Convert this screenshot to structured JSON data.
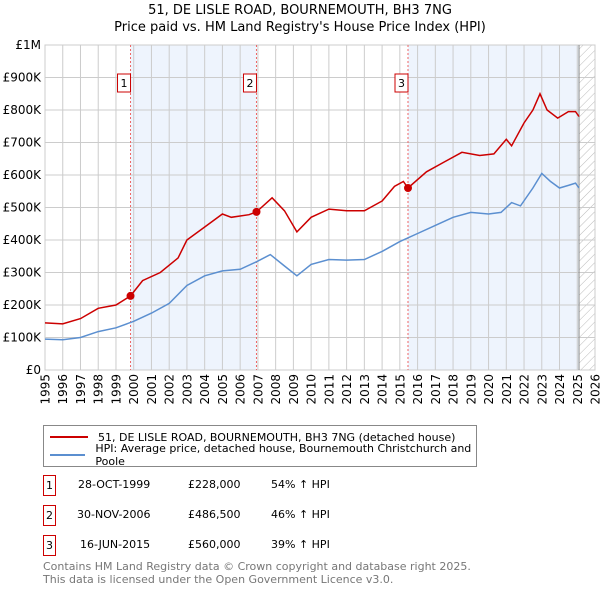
{
  "chart_data": {
    "type": "line",
    "title": "51, DE LISLE ROAD, BOURNEMOUTH, BH3 7NG",
    "subtitle": "Price paid vs. HM Land Registry's House Price Index (HPI)",
    "xlim": [
      1995,
      2026
    ],
    "ylim": [
      0,
      1000000
    ],
    "x_ticks": [
      "1995",
      "1996",
      "1997",
      "1998",
      "1999",
      "2000",
      "2001",
      "2002",
      "2003",
      "2004",
      "2005",
      "2006",
      "2007",
      "2008",
      "2009",
      "2010",
      "2011",
      "2012",
      "2013",
      "2014",
      "2015",
      "2016",
      "2017",
      "2018",
      "2019",
      "2020",
      "2021",
      "2022",
      "2023",
      "2024",
      "2025",
      "2026"
    ],
    "y_ticks": [
      {
        "v": 0,
        "label": "£0"
      },
      {
        "v": 100000,
        "label": "£100K"
      },
      {
        "v": 200000,
        "label": "£200K"
      },
      {
        "v": 300000,
        "label": "£300K"
      },
      {
        "v": 400000,
        "label": "£400K"
      },
      {
        "v": 500000,
        "label": "£500K"
      },
      {
        "v": 600000,
        "label": "£600K"
      },
      {
        "v": 700000,
        "label": "£700K"
      },
      {
        "v": 800000,
        "label": "£800K"
      },
      {
        "v": 900000,
        "label": "£900K"
      },
      {
        "v": 1000000,
        "label": "£1M"
      }
    ],
    "grid": true,
    "data_end": 2025.1,
    "series": [
      {
        "name": "51, DE LISLE ROAD, BOURNEMOUTH, BH3 7NG (detached house)",
        "color": "#cc0000",
        "x": [
          1995,
          1996,
          1997,
          1998,
          1999,
          1999.82,
          2000.5,
          2001.5,
          2002.5,
          2003,
          2004,
          2005,
          2005.5,
          2006.5,
          2006.92,
          2007.8,
          2008.5,
          2009.2,
          2010,
          2011,
          2012,
          2013,
          2014,
          2014.7,
          2015.2,
          2015.46,
          2016.5,
          2017.5,
          2018.5,
          2019.5,
          2020.3,
          2021,
          2021.3,
          2022,
          2022.5,
          2022.9,
          2023.3,
          2023.9,
          2024.5,
          2024.9,
          2025.1
        ],
        "y": [
          145000,
          142000,
          158000,
          190000,
          200000,
          228000,
          275000,
          300000,
          345000,
          400000,
          440000,
          480000,
          470000,
          478000,
          486500,
          530000,
          490000,
          425000,
          470000,
          495000,
          490000,
          490000,
          520000,
          565000,
          580000,
          560000,
          610000,
          640000,
          670000,
          660000,
          665000,
          710000,
          690000,
          760000,
          800000,
          850000,
          800000,
          775000,
          795000,
          795000,
          780000
        ]
      },
      {
        "name": "HPI: Average price, detached house, Bournemouth Christchurch and Poole",
        "color": "#5b8fd0",
        "x": [
          1995,
          1996,
          1997,
          1998,
          1999,
          2000,
          2001,
          2002,
          2003,
          2004,
          2005,
          2006,
          2007,
          2007.7,
          2008.5,
          2009.2,
          2010,
          2011,
          2012,
          2013,
          2014,
          2015,
          2016,
          2017,
          2018,
          2019,
          2020,
          2020.7,
          2021.3,
          2021.8,
          2022.5,
          2023,
          2023.5,
          2024,
          2024.5,
          2024.9,
          2025.1
        ],
        "y": [
          95000,
          93000,
          100000,
          118000,
          130000,
          150000,
          175000,
          205000,
          260000,
          290000,
          305000,
          310000,
          335000,
          355000,
          320000,
          290000,
          325000,
          340000,
          338000,
          340000,
          365000,
          395000,
          420000,
          445000,
          470000,
          485000,
          480000,
          485000,
          515000,
          505000,
          560000,
          605000,
          580000,
          560000,
          568000,
          575000,
          560000
        ]
      }
    ],
    "sales": [
      {
        "label": "1",
        "date": "28-OCT-1999",
        "x": 1999.82,
        "price": "£228,000",
        "value": 228000,
        "hpi": "54% ↑ HPI"
      },
      {
        "label": "2",
        "date": "30-NOV-2006",
        "x": 2006.92,
        "price": "£486,500",
        "value": 486500,
        "hpi": "46% ↑ HPI"
      },
      {
        "label": "3",
        "date": "16-JUN-2015",
        "x": 2015.46,
        "price": "£560,000",
        "value": 560000,
        "hpi": "39% ↑ HPI"
      }
    ],
    "legend_placement": "below"
  },
  "footer": {
    "line1": "Contains HM Land Registry data © Crown copyright and database right 2025.",
    "line2": "This data is licensed under the Open Government Licence v3.0."
  }
}
